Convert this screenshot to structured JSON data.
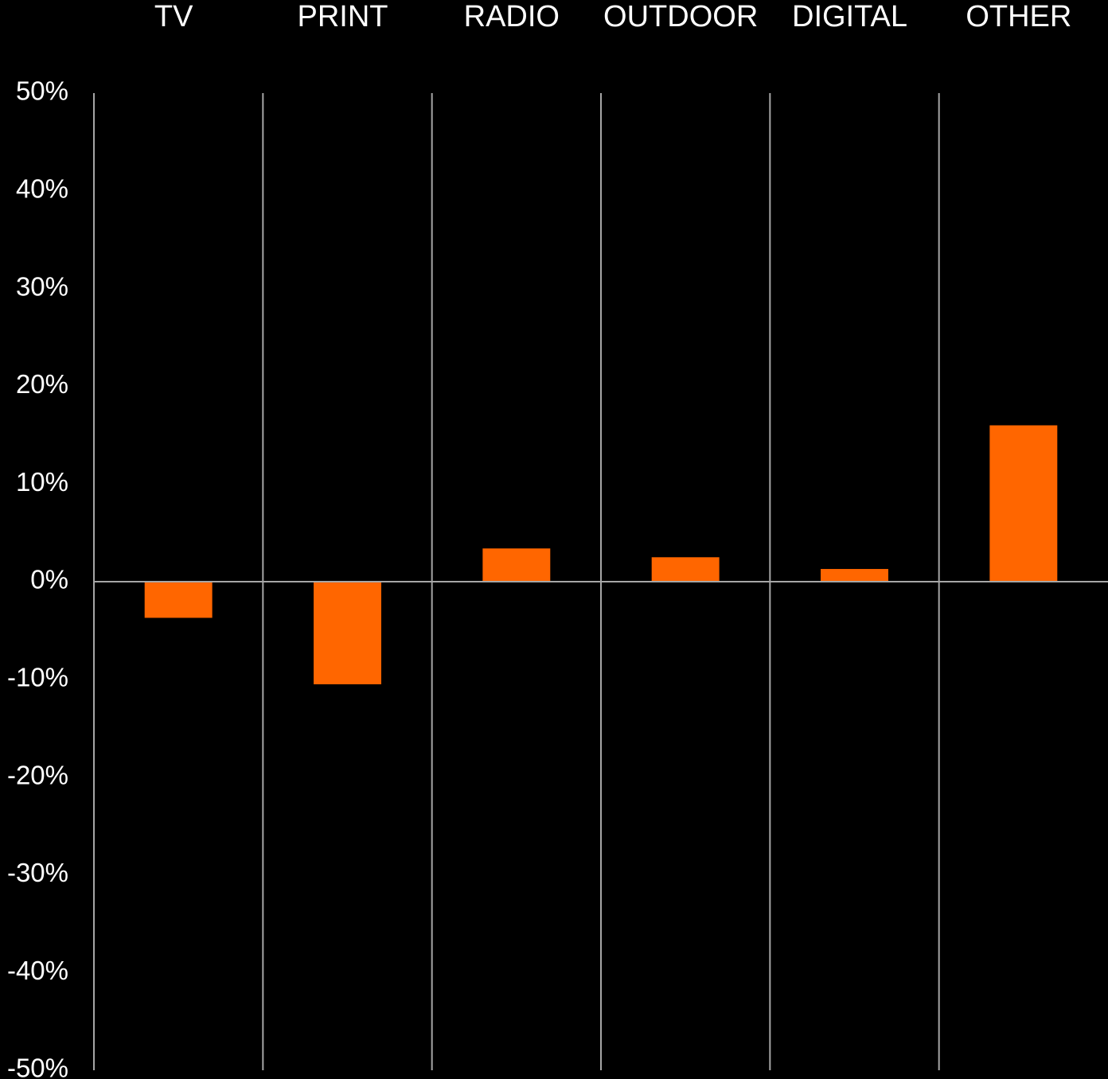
{
  "chart_data": {
    "type": "bar",
    "categories": [
      "TV",
      "PRINT",
      "RADIO",
      "OUTDOOR",
      "DIGITAL",
      "OTHER"
    ],
    "values": [
      -3.7,
      -10.5,
      3.4,
      2.5,
      1.3,
      16.0
    ],
    "color": "#ff6600",
    "ylim": [
      -50,
      50
    ],
    "yticks": [
      {
        "value": 50,
        "label": "50%"
      },
      {
        "value": 40,
        "label": "40%"
      },
      {
        "value": 30,
        "label": "30%"
      },
      {
        "value": 20,
        "label": "20%"
      },
      {
        "value": 10,
        "label": "10%"
      },
      {
        "value": 0,
        "label": "0%"
      },
      {
        "value": -10,
        "label": "-10%"
      },
      {
        "value": -20,
        "label": "-20%"
      },
      {
        "value": -30,
        "label": "-30%"
      },
      {
        "value": -40,
        "label": "-40%"
      },
      {
        "value": -50,
        "label": "-50%"
      }
    ],
    "grid": false
  }
}
